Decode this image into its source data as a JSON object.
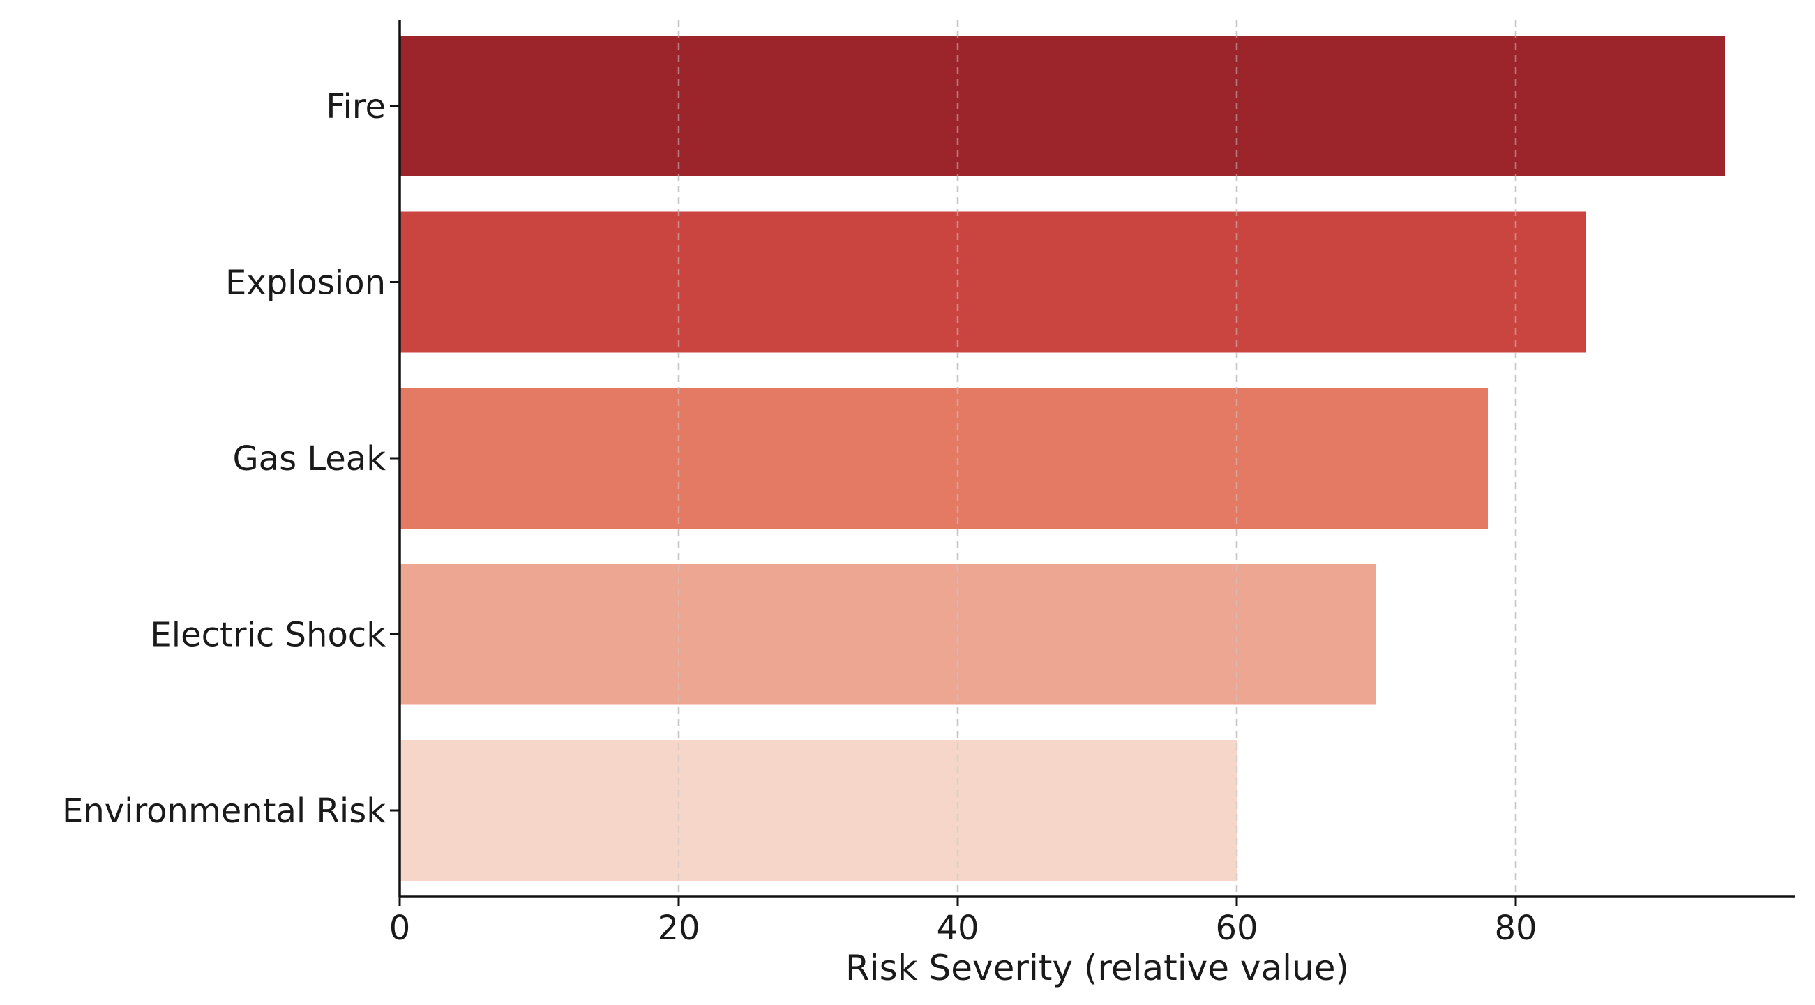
{
  "chart_data": {
    "type": "bar",
    "orientation": "horizontal",
    "title": "",
    "xlabel": "Risk Severity (relative value)",
    "ylabel": "",
    "xlim": [
      0,
      100
    ],
    "xticks": [
      0,
      20,
      40,
      60,
      80
    ],
    "categories": [
      "Fire",
      "Explosion",
      "Gas Leak",
      "Electric Shock",
      "Environmental Risk"
    ],
    "values": [
      95,
      85,
      78,
      70,
      60
    ],
    "colors": [
      "#9c242b",
      "#cb4540",
      "#e57a64",
      "#eca692",
      "#f5d6c8"
    ],
    "grid": {
      "x": true,
      "y": false,
      "style": "dashed"
    },
    "legend": "none"
  }
}
